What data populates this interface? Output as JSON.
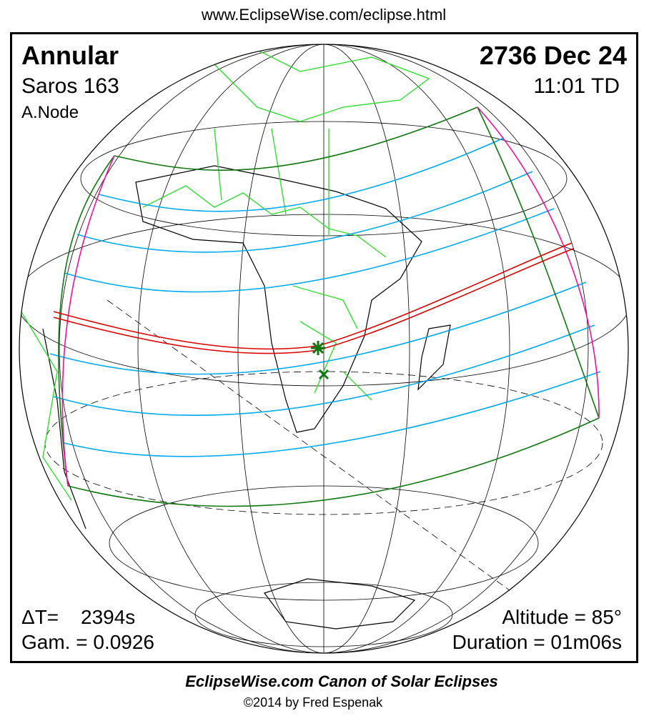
{
  "header": {
    "url": "www.EclipseWise.com/eclipse.html"
  },
  "eclipse": {
    "type": "Annular",
    "saros": "Saros 163",
    "node": "A.Node",
    "date": "2736 Dec 24",
    "time": "11:01 TD",
    "delta_t_label": "ΔT=",
    "delta_t": "2394s",
    "gamma": "Gam. = 0.0926",
    "altitude": "Altitude = 85°",
    "duration": "Duration = 01m06s"
  },
  "footer": {
    "title": "EclipseWise.com Canon of Solar Eclipses",
    "credit": "©2014 by Fred Espenak"
  }
}
